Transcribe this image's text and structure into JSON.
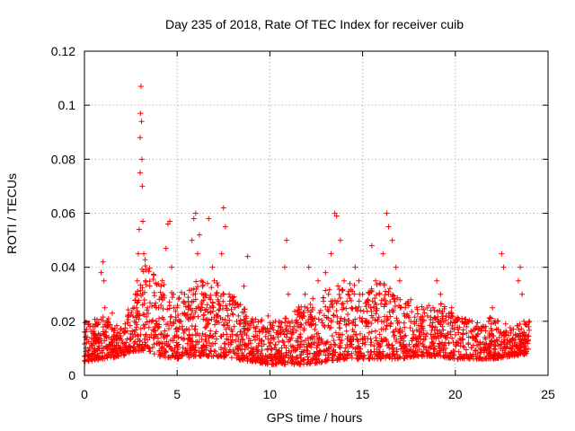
{
  "chart_data": {
    "type": "scatter",
    "title": "Day 235 of 2018, Rate Of TEC Index for receiver cuib",
    "xlabel": "GPS time / hours",
    "ylabel": "ROTI / TECUs",
    "xlim": [
      0,
      25
    ],
    "ylim": [
      0,
      0.12
    ],
    "xticks": [
      0,
      5,
      10,
      15,
      20,
      25
    ],
    "xtick_labels": [
      "0",
      "5",
      "10",
      "15",
      "20",
      "25"
    ],
    "yticks": [
      0,
      0.02,
      0.04,
      0.06,
      0.08,
      0.1,
      0.12
    ],
    "ytick_labels": [
      "0",
      "0.02",
      "0.04",
      "0.06",
      "0.08",
      "0.1",
      "0.12"
    ],
    "grid": true,
    "legend": "none",
    "marker": "plus",
    "color": "#ff0000",
    "series": [
      {
        "points": [
          [
            0.0,
            0.016
          ],
          [
            0.1,
            0.012
          ],
          [
            0.2,
            0.009
          ],
          [
            0.3,
            0.018
          ],
          [
            0.4,
            0.011
          ],
          [
            0.5,
            0.015
          ],
          [
            0.6,
            0.019
          ],
          [
            0.7,
            0.013
          ],
          [
            0.8,
            0.01
          ],
          [
            0.9,
            0.038
          ],
          [
            1.0,
            0.042
          ],
          [
            1.05,
            0.035
          ],
          [
            1.1,
            0.025
          ],
          [
            1.2,
            0.014
          ],
          [
            1.3,
            0.021
          ],
          [
            1.4,
            0.011
          ],
          [
            1.5,
            0.023
          ],
          [
            1.6,
            0.015
          ],
          [
            1.7,
            0.01
          ],
          [
            1.8,
            0.012
          ],
          [
            2.0,
            0.013
          ],
          [
            2.2,
            0.011
          ],
          [
            2.4,
            0.01
          ],
          [
            2.6,
            0.015
          ],
          [
            2.7,
            0.02
          ],
          [
            2.8,
            0.025
          ],
          [
            2.85,
            0.035
          ],
          [
            2.9,
            0.045
          ],
          [
            2.95,
            0.054
          ],
          [
            3.0,
            0.075
          ],
          [
            3.0,
            0.088
          ],
          [
            3.02,
            0.097
          ],
          [
            3.05,
            0.107
          ],
          [
            3.08,
            0.094
          ],
          [
            3.1,
            0.08
          ],
          [
            3.12,
            0.07
          ],
          [
            3.15,
            0.057
          ],
          [
            3.2,
            0.045
          ],
          [
            3.3,
            0.035
          ],
          [
            3.4,
            0.025
          ],
          [
            3.5,
            0.02
          ],
          [
            3.6,
            0.015
          ],
          [
            3.8,
            0.018
          ],
          [
            4.0,
            0.025
          ],
          [
            4.2,
            0.035
          ],
          [
            4.4,
            0.047
          ],
          [
            4.5,
            0.056
          ],
          [
            4.6,
            0.057
          ],
          [
            4.7,
            0.04
          ],
          [
            4.8,
            0.03
          ],
          [
            5.0,
            0.025
          ],
          [
            5.2,
            0.02
          ],
          [
            5.4,
            0.03
          ],
          [
            5.6,
            0.025
          ],
          [
            5.8,
            0.05
          ],
          [
            5.9,
            0.058
          ],
          [
            6.0,
            0.06
          ],
          [
            6.1,
            0.045
          ],
          [
            6.2,
            0.052
          ],
          [
            6.3,
            0.035
          ],
          [
            6.5,
            0.03
          ],
          [
            6.7,
            0.058
          ],
          [
            6.9,
            0.04
          ],
          [
            7.0,
            0.035
          ],
          [
            7.2,
            0.028
          ],
          [
            7.4,
            0.045
          ],
          [
            7.5,
            0.062
          ],
          [
            7.6,
            0.055
          ],
          [
            7.8,
            0.03
          ],
          [
            8.0,
            0.026
          ],
          [
            8.3,
            0.022
          ],
          [
            8.6,
            0.033
          ],
          [
            8.8,
            0.044
          ],
          [
            9.0,
            0.02
          ],
          [
            9.3,
            0.018
          ],
          [
            9.6,
            0.016
          ],
          [
            9.9,
            0.022
          ],
          [
            10.2,
            0.014
          ],
          [
            10.5,
            0.02
          ],
          [
            10.8,
            0.04
          ],
          [
            10.9,
            0.05
          ],
          [
            11.0,
            0.03
          ],
          [
            11.3,
            0.018
          ],
          [
            11.6,
            0.022
          ],
          [
            11.9,
            0.03
          ],
          [
            12.1,
            0.04
          ],
          [
            12.3,
            0.025
          ],
          [
            12.6,
            0.035
          ],
          [
            13.0,
            0.038
          ],
          [
            13.3,
            0.045
          ],
          [
            13.5,
            0.06
          ],
          [
            13.6,
            0.059
          ],
          [
            13.8,
            0.05
          ],
          [
            14.0,
            0.035
          ],
          [
            14.2,
            0.03
          ],
          [
            14.4,
            0.025
          ],
          [
            14.6,
            0.04
          ],
          [
            14.8,
            0.035
          ],
          [
            15.0,
            0.03
          ],
          [
            15.3,
            0.028
          ],
          [
            15.5,
            0.048
          ],
          [
            15.7,
            0.035
          ],
          [
            15.9,
            0.03
          ],
          [
            16.1,
            0.045
          ],
          [
            16.3,
            0.06
          ],
          [
            16.4,
            0.055
          ],
          [
            16.6,
            0.05
          ],
          [
            16.8,
            0.04
          ],
          [
            17.0,
            0.035
          ],
          [
            17.3,
            0.025
          ],
          [
            17.6,
            0.028
          ],
          [
            17.9,
            0.02
          ],
          [
            18.2,
            0.018
          ],
          [
            18.5,
            0.022
          ],
          [
            18.8,
            0.025
          ],
          [
            19.0,
            0.035
          ],
          [
            19.2,
            0.03
          ],
          [
            19.5,
            0.022
          ],
          [
            19.8,
            0.025
          ],
          [
            20.0,
            0.015
          ],
          [
            20.3,
            0.012
          ],
          [
            20.6,
            0.018
          ],
          [
            20.9,
            0.02
          ],
          [
            21.2,
            0.015
          ],
          [
            21.5,
            0.012
          ],
          [
            21.8,
            0.02
          ],
          [
            22.0,
            0.025
          ],
          [
            22.3,
            0.02
          ],
          [
            22.5,
            0.045
          ],
          [
            22.6,
            0.04
          ],
          [
            22.8,
            0.012
          ],
          [
            23.0,
            0.01
          ],
          [
            23.2,
            0.012
          ],
          [
            23.4,
            0.035
          ],
          [
            23.5,
            0.04
          ],
          [
            23.6,
            0.03
          ],
          [
            23.7,
            0.02
          ],
          [
            23.8,
            0.014
          ],
          [
            23.95,
            0.018
          ],
          [
            24.0,
            0.02
          ]
        ]
      }
    ],
    "density_envelope": {
      "hours": [
        0,
        1,
        2,
        2.7,
        3.3,
        4,
        5,
        6,
        7,
        8,
        9,
        10,
        11,
        12,
        13,
        14,
        15,
        16,
        17,
        18,
        19,
        20,
        21,
        22,
        23,
        24
      ],
      "low": [
        0.005,
        0.006,
        0.007,
        0.009,
        0.009,
        0.007,
        0.006,
        0.007,
        0.007,
        0.006,
        0.005,
        0.004,
        0.004,
        0.004,
        0.005,
        0.006,
        0.006,
        0.006,
        0.006,
        0.007,
        0.007,
        0.006,
        0.006,
        0.006,
        0.007,
        0.008
      ],
      "high": [
        0.02,
        0.022,
        0.018,
        0.03,
        0.045,
        0.035,
        0.03,
        0.035,
        0.035,
        0.03,
        0.022,
        0.02,
        0.022,
        0.028,
        0.032,
        0.035,
        0.032,
        0.035,
        0.03,
        0.025,
        0.028,
        0.022,
        0.02,
        0.022,
        0.018,
        0.02
      ]
    }
  }
}
